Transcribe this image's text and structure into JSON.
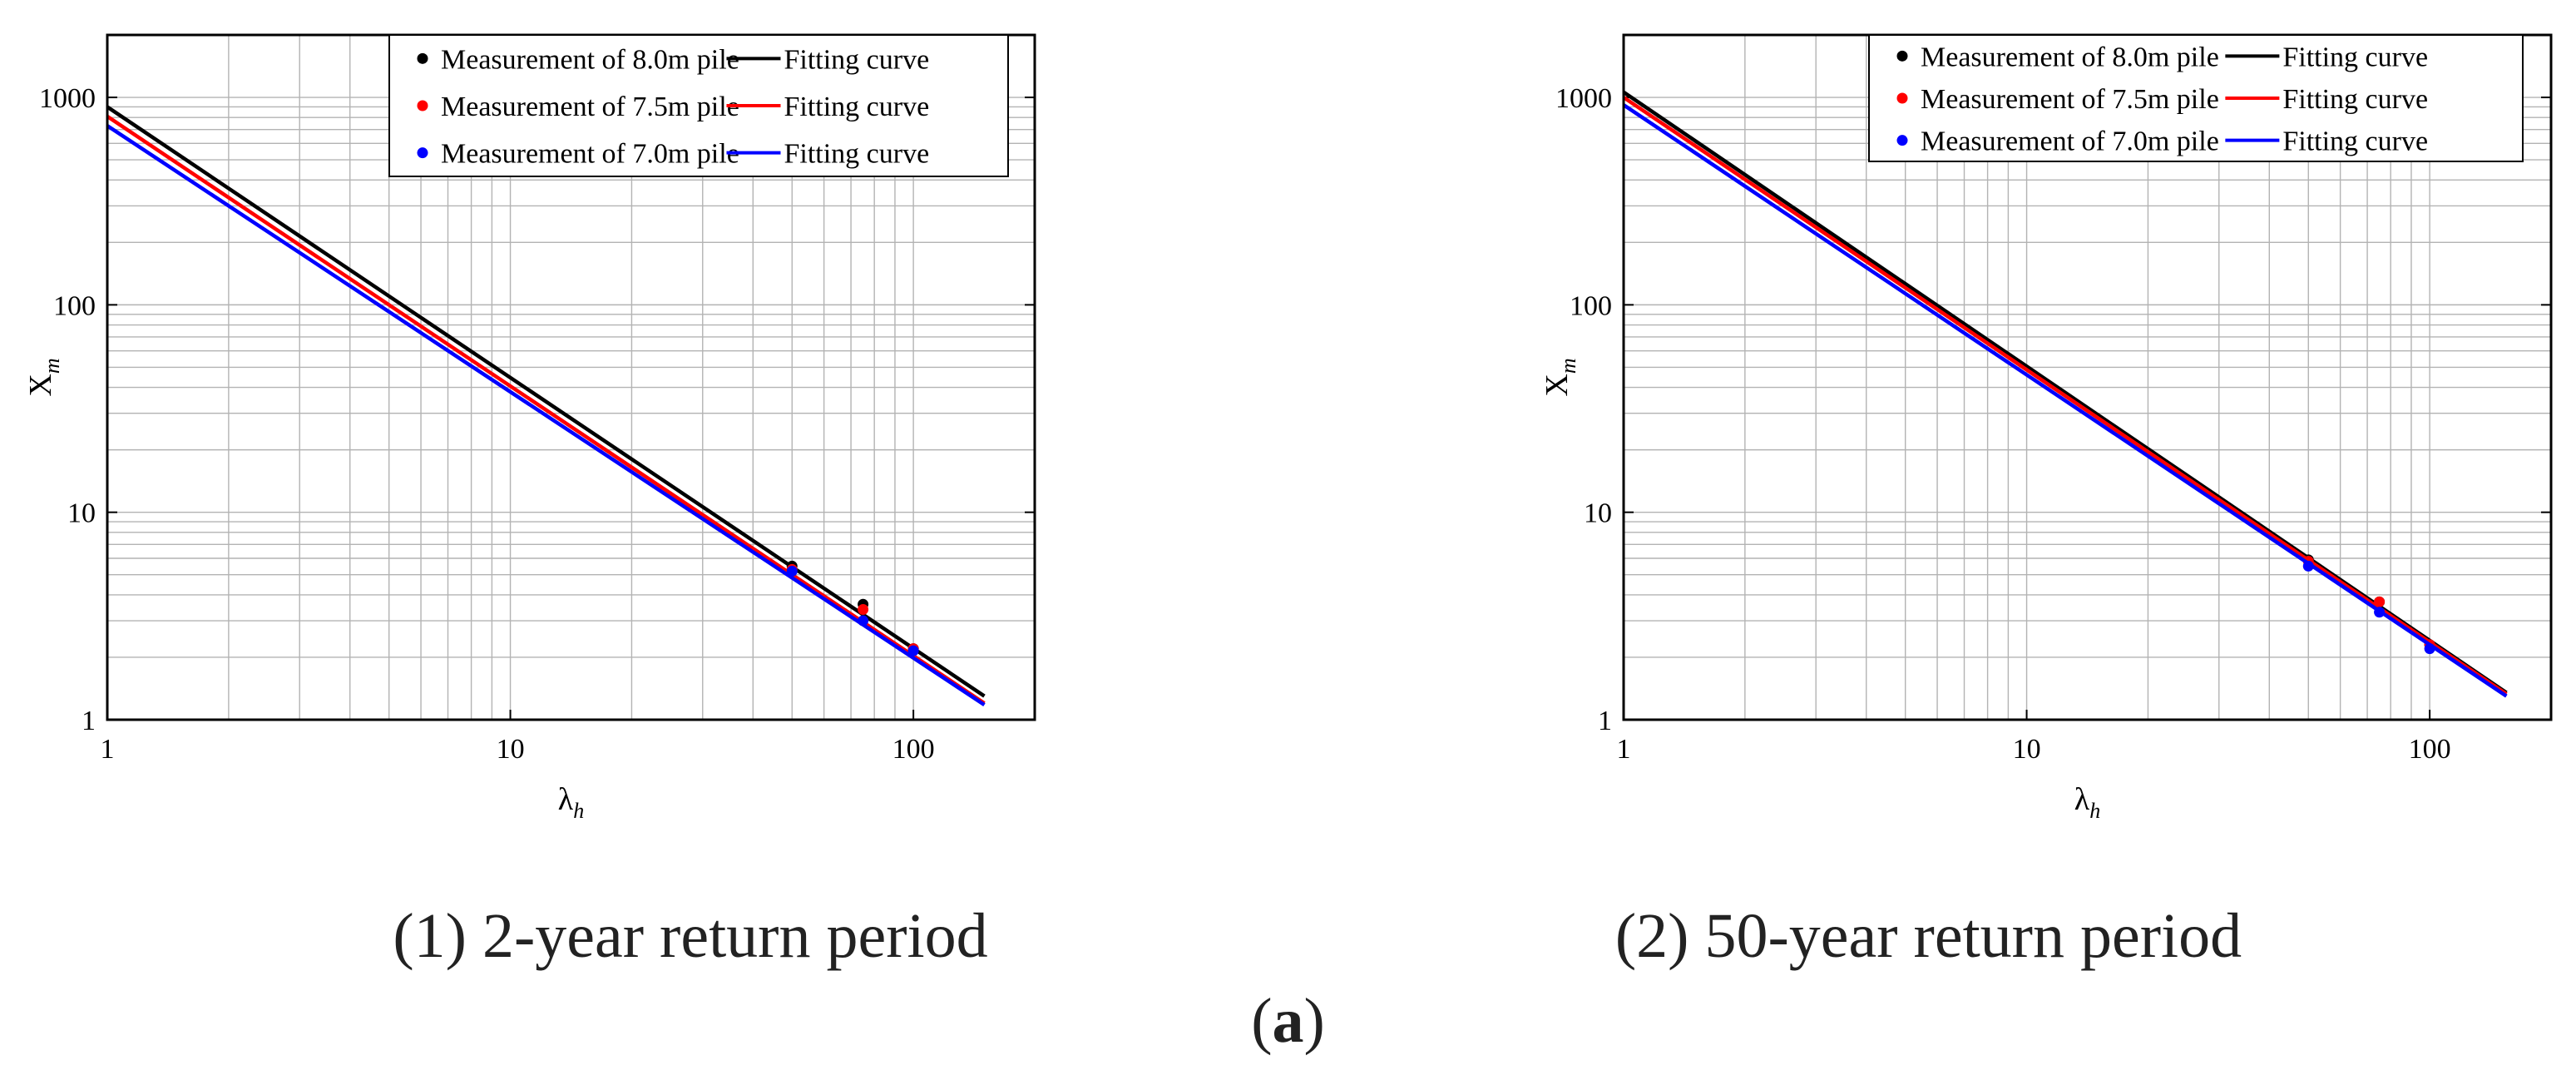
{
  "figure_label": "a",
  "chart_data": [
    {
      "type": "line",
      "scale": "log-log",
      "caption": "(1) 2-year return period",
      "xlabel": "λ",
      "xlabel_sub": "h",
      "ylabel": "X",
      "ylabel_sub": "m",
      "xlim": [
        1,
        200
      ],
      "ylim": [
        1,
        2000
      ],
      "x_ticks": [
        1,
        10,
        100
      ],
      "x_tick_labels": [
        "1",
        "10",
        "100"
      ],
      "y_ticks": [
        1,
        10,
        100,
        1000
      ],
      "y_tick_labels": [
        "1",
        "10",
        "100",
        "1000"
      ],
      "grid": true,
      "legend_position": "top-right",
      "series": [
        {
          "name": "Measurement of 8.0m pile",
          "fit_label": "Fitting curve",
          "color": "#000000",
          "line": {
            "x": [
              1,
              150
            ],
            "y": [
              900,
              1.3
            ]
          },
          "points": {
            "x": [
              50,
              75,
              100
            ],
            "y": [
              5.5,
              3.6,
              2.2
            ]
          }
        },
        {
          "name": "Measurement of 7.5m pile",
          "fit_label": "Fitting curve",
          "color": "#ff0000",
          "line": {
            "x": [
              1,
              150
            ],
            "y": [
              810,
              1.2
            ]
          },
          "points": {
            "x": [
              50,
              75,
              100
            ],
            "y": [
              5.3,
              3.4,
              2.2
            ]
          }
        },
        {
          "name": "Measurement of 7.0m pile",
          "fit_label": "Fitting curve",
          "color": "#0000ff",
          "line": {
            "x": [
              1,
              150
            ],
            "y": [
              730,
              1.18
            ]
          },
          "points": {
            "x": [
              50,
              75,
              100
            ],
            "y": [
              5.2,
              3.0,
              2.15
            ]
          }
        }
      ]
    },
    {
      "type": "line",
      "scale": "log-log",
      "caption": "(2) 50-year return period",
      "xlabel": "λ",
      "xlabel_sub": "h",
      "ylabel": "X",
      "ylabel_sub": "m",
      "xlim": [
        1,
        200
      ],
      "ylim": [
        1,
        2000
      ],
      "x_ticks": [
        1,
        10,
        100
      ],
      "x_tick_labels": [
        "1",
        "10",
        "100"
      ],
      "y_ticks": [
        1,
        10,
        100,
        1000
      ],
      "y_tick_labels": [
        "1",
        "10",
        "100",
        "1000"
      ],
      "grid": true,
      "legend_position": "top-right",
      "series": [
        {
          "name": "Measurement of 8.0m pile",
          "fit_label": "Fitting curve",
          "color": "#000000",
          "line": {
            "x": [
              1,
              155
            ],
            "y": [
              1060,
              1.35
            ]
          },
          "points": {
            "x": [
              50,
              75,
              100
            ],
            "y": [
              5.9,
              3.7,
              2.3
            ]
          }
        },
        {
          "name": "Measurement of 7.5m pile",
          "fit_label": "Fitting curve",
          "color": "#ff0000",
          "line": {
            "x": [
              1,
              155
            ],
            "y": [
              1000,
              1.33
            ]
          },
          "points": {
            "x": [
              50,
              75,
              100
            ],
            "y": [
              5.8,
              3.7,
              2.3
            ]
          }
        },
        {
          "name": "Measurement of 7.0m pile",
          "fit_label": "Fitting curve",
          "color": "#0000ff",
          "line": {
            "x": [
              1,
              155
            ],
            "y": [
              920,
              1.3
            ]
          },
          "points": {
            "x": [
              50,
              75,
              100
            ],
            "y": [
              5.5,
              3.3,
              2.2
            ]
          }
        }
      ]
    }
  ]
}
